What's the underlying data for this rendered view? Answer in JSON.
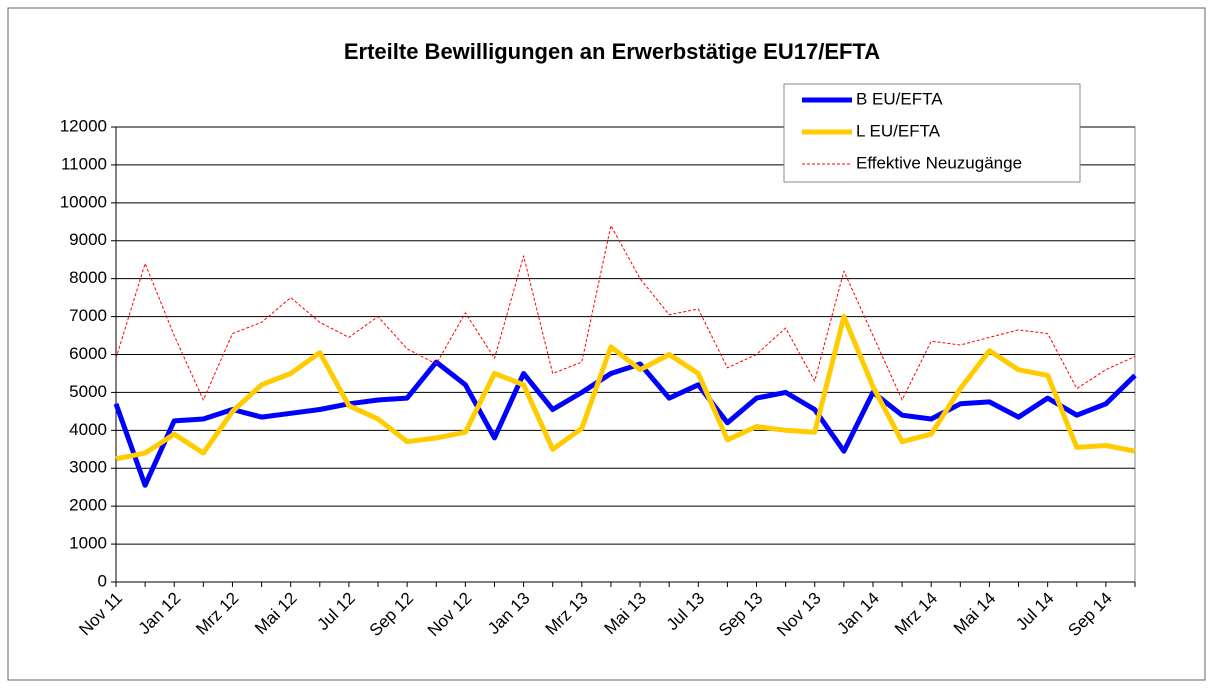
{
  "chart_data": {
    "type": "line",
    "title": "Erteilte Bewilligungen an Erwerbstätige EU17/EFTA",
    "categories": [
      "Nov 11",
      null,
      "Jan 12",
      null,
      "Mrz 12",
      null,
      "Mai 12",
      null,
      "Jul 12",
      null,
      "Sep 12",
      null,
      "Nov 12",
      null,
      "Jan 13",
      null,
      "Mrz 13",
      null,
      "Mai 13",
      null,
      "Jul 13",
      null,
      "Sep 13",
      null,
      "Nov 13",
      null,
      "Jan 14",
      null,
      "Mrz 14",
      null,
      "Mai 14",
      null,
      "Jul 14",
      null,
      "Sep 14",
      null
    ],
    "series": [
      {
        "name": "B EU/EFTA",
        "color": "#0000ff",
        "width": 5,
        "dash": false,
        "values": [
          4700,
          2550,
          4250,
          4300,
          4550,
          4350,
          4450,
          4550,
          4700,
          4800,
          4850,
          5800,
          5200,
          3800,
          5500,
          4550,
          5000,
          5500,
          5750,
          4850,
          5200,
          4200,
          4850,
          5000,
          4550,
          3450,
          5000,
          4400,
          4300,
          4700,
          4750,
          4350,
          4850,
          4400,
          4700,
          5450
        ]
      },
      {
        "name": "L EU/EFTA",
        "color": "#ffcc00",
        "width": 5,
        "dash": false,
        "values": [
          3250,
          3400,
          3900,
          3400,
          4500,
          5200,
          5500,
          6050,
          4650,
          4300,
          3700,
          3800,
          3950,
          5500,
          5200,
          3500,
          4050,
          6200,
          5600,
          6000,
          5500,
          3750,
          4100,
          4000,
          3950,
          7000,
          5150,
          3700,
          3900,
          5100,
          6100,
          5600,
          5450,
          3550,
          3600,
          3450
        ]
      },
      {
        "name": "Effektive Neuzugänge",
        "color": "#ff0000",
        "width": 1,
        "dash": true,
        "values": [
          5900,
          8400,
          6500,
          4800,
          6550,
          6850,
          7500,
          6850,
          6450,
          7000,
          6150,
          5750,
          7100,
          5900,
          8600,
          5500,
          5800,
          9400,
          8000,
          7050,
          7200,
          5650,
          6000,
          6700,
          5300,
          8200,
          6500,
          4800,
          6350,
          6250,
          6450,
          6650,
          6550,
          5100,
          5600,
          5950
        ]
      }
    ],
    "ylim": [
      0,
      12000
    ],
    "yticks": [
      0,
      1000,
      2000,
      3000,
      4000,
      5000,
      6000,
      7000,
      8000,
      9000,
      10000,
      11000,
      12000
    ],
    "grid": true,
    "legend": "top-right"
  }
}
